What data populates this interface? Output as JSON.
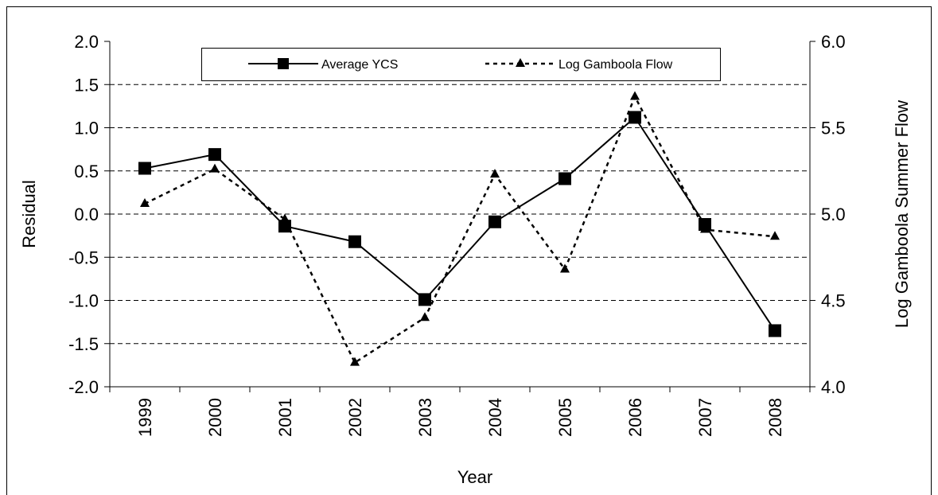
{
  "chart_data": {
    "type": "line",
    "x_label": "Year",
    "y_label": "Residual",
    "y2_label": "Log Gamboola Summer Flow",
    "categories": [
      "1999",
      "2000",
      "2001",
      "2002",
      "2003",
      "2004",
      "2005",
      "2006",
      "2007",
      "2008"
    ],
    "series": [
      {
        "name": "Average YCS",
        "color": "#000000",
        "marker": "square",
        "dash": false,
        "values": [
          0.53,
          0.69,
          -0.14,
          -0.32,
          -0.99,
          -0.09,
          0.41,
          1.12,
          -0.12,
          -1.35
        ]
      },
      {
        "name": "Log Gamboola Flow",
        "color": "#000000",
        "marker": "triangle",
        "dash": true,
        "axis": "y2",
        "values": [
          5.06,
          5.26,
          4.97,
          4.14,
          4.4,
          5.23,
          4.68,
          5.68,
          4.91,
          4.87
        ]
      }
    ],
    "ylim": [
      -2,
      2
    ],
    "yticks": [
      {
        "value": -2,
        "label": "-2.0"
      },
      {
        "value": -1.5,
        "label": "-1.5"
      },
      {
        "value": -1,
        "label": "-1.0"
      },
      {
        "value": -0.5,
        "label": "-0.5"
      },
      {
        "value": 0,
        "label": "0.0"
      },
      {
        "value": 0.5,
        "label": "0.5"
      },
      {
        "value": 1,
        "label": "1.0"
      },
      {
        "value": 1.5,
        "label": "1.5"
      },
      {
        "value": 2,
        "label": "2.0"
      }
    ],
    "y2lim": [
      4,
      6
    ],
    "y2ticks": [
      {
        "value": 4,
        "label": "4.0"
      },
      {
        "value": 4.5,
        "label": "4.5"
      },
      {
        "value": 5,
        "label": "5.0"
      },
      {
        "value": 5.5,
        "label": "5.5"
      },
      {
        "value": 6,
        "label": "6.0"
      }
    ],
    "grid": true,
    "legend": "top"
  }
}
